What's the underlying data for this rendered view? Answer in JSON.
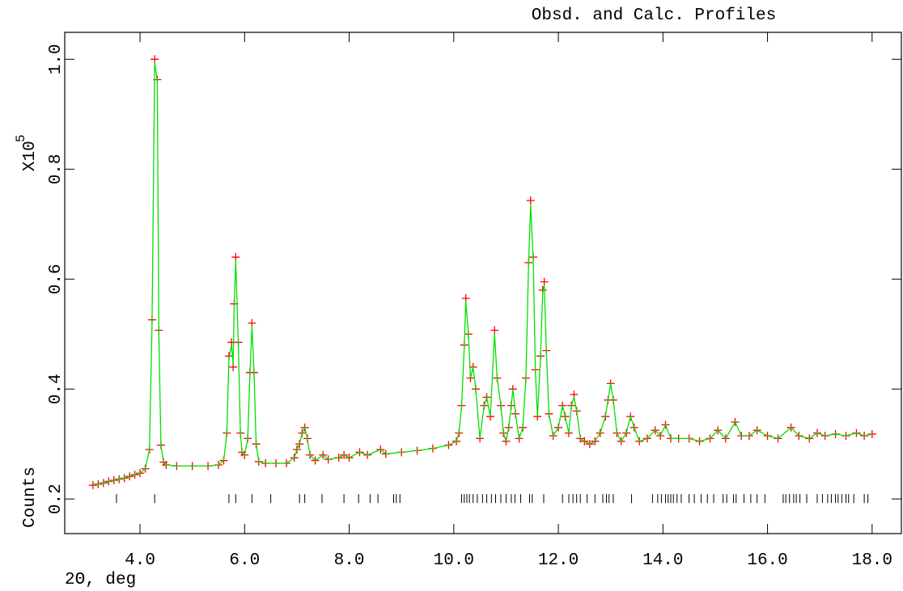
{
  "chart_data": {
    "type": "line",
    "title": "Obsd. and Calc. Profiles",
    "xlabel": "2Θ, deg",
    "ylabel": "Counts",
    "y_multiplier": "X10",
    "y_exponent": "5",
    "x": [
      3.1,
      3.2,
      3.3,
      3.4,
      3.5,
      3.6,
      3.7,
      3.8,
      3.9,
      4.0,
      4.1,
      4.18,
      4.23,
      4.28,
      4.33,
      4.36,
      4.4,
      4.45,
      4.5,
      4.7,
      5.0,
      5.3,
      5.5,
      5.6,
      5.66,
      5.7,
      5.75,
      5.78,
      5.8,
      5.83,
      5.88,
      5.92,
      5.95,
      6.0,
      6.06,
      6.1,
      6.14,
      6.18,
      6.22,
      6.27,
      6.4,
      6.6,
      6.8,
      6.95,
      7.0,
      7.05,
      7.1,
      7.15,
      7.2,
      7.25,
      7.35,
      7.5,
      7.6,
      7.8,
      7.9,
      8.0,
      8.2,
      8.35,
      8.6,
      8.7,
      9.0,
      9.3,
      9.6,
      9.9,
      10.05,
      10.1,
      10.15,
      10.2,
      10.23,
      10.28,
      10.32,
      10.37,
      10.42,
      10.5,
      10.58,
      10.63,
      10.7,
      10.78,
      10.83,
      10.9,
      10.95,
      11.0,
      11.05,
      11.1,
      11.13,
      11.18,
      11.25,
      11.32,
      11.38,
      11.43,
      11.47,
      11.52,
      11.56,
      11.6,
      11.66,
      11.7,
      11.73,
      11.77,
      11.82,
      11.9,
      12.0,
      12.08,
      12.13,
      12.2,
      12.25,
      12.3,
      12.35,
      12.42,
      12.5,
      12.6,
      12.7,
      12.8,
      12.9,
      12.95,
      13.0,
      13.05,
      13.12,
      13.2,
      13.3,
      13.38,
      13.45,
      13.55,
      13.7,
      13.85,
      13.95,
      14.05,
      14.15,
      14.3,
      14.5,
      14.7,
      14.9,
      15.05,
      15.2,
      15.38,
      15.5,
      15.65,
      15.8,
      16.0,
      16.2,
      16.45,
      16.6,
      16.8,
      16.95,
      17.1,
      17.3,
      17.5,
      17.7,
      17.85,
      18.0
    ],
    "series": [
      {
        "color": "#ff0000",
        "marker": "plus",
        "values": [
          0.225,
          0.227,
          0.229,
          0.232,
          0.234,
          0.236,
          0.238,
          0.241,
          0.244,
          0.247,
          0.255,
          0.29,
          0.526,
          1.0,
          0.963,
          0.507,
          0.298,
          0.267,
          0.262,
          0.26,
          0.26,
          0.26,
          0.262,
          0.27,
          0.32,
          0.46,
          0.485,
          0.44,
          0.555,
          0.64,
          0.485,
          0.32,
          0.285,
          0.28,
          0.31,
          0.43,
          0.52,
          0.43,
          0.3,
          0.268,
          0.265,
          0.265,
          0.265,
          0.275,
          0.29,
          0.3,
          0.32,
          0.33,
          0.31,
          0.28,
          0.27,
          0.28,
          0.272,
          0.275,
          0.28,
          0.275,
          0.285,
          0.28,
          0.29,
          0.282,
          0.285,
          0.288,
          0.292,
          0.298,
          0.305,
          0.32,
          0.37,
          0.48,
          0.565,
          0.5,
          0.42,
          0.44,
          0.4,
          0.31,
          0.37,
          0.385,
          0.35,
          0.507,
          0.42,
          0.37,
          0.32,
          0.305,
          0.33,
          0.37,
          0.4,
          0.355,
          0.31,
          0.33,
          0.42,
          0.63,
          0.743,
          0.64,
          0.435,
          0.35,
          0.46,
          0.58,
          0.595,
          0.47,
          0.355,
          0.315,
          0.33,
          0.37,
          0.35,
          0.32,
          0.37,
          0.39,
          0.36,
          0.31,
          0.305,
          0.3,
          0.305,
          0.32,
          0.35,
          0.38,
          0.41,
          0.38,
          0.32,
          0.305,
          0.32,
          0.35,
          0.33,
          0.305,
          0.31,
          0.325,
          0.315,
          0.335,
          0.31,
          0.31,
          0.31,
          0.305,
          0.31,
          0.325,
          0.31,
          0.34,
          0.315,
          0.315,
          0.325,
          0.315,
          0.31,
          0.33,
          0.315,
          0.31,
          0.32,
          0.315,
          0.318,
          0.315,
          0.32,
          0.315,
          0.318
        ]
      },
      {
        "color": "#00e000",
        "marker": "line",
        "values": [
          0.225,
          0.227,
          0.229,
          0.232,
          0.234,
          0.236,
          0.238,
          0.241,
          0.244,
          0.247,
          0.255,
          0.29,
          0.52,
          0.995,
          0.96,
          0.5,
          0.298,
          0.267,
          0.262,
          0.26,
          0.26,
          0.26,
          0.262,
          0.27,
          0.32,
          0.455,
          0.48,
          0.445,
          0.55,
          0.635,
          0.48,
          0.32,
          0.285,
          0.28,
          0.31,
          0.425,
          0.515,
          0.43,
          0.3,
          0.268,
          0.265,
          0.265,
          0.265,
          0.275,
          0.29,
          0.3,
          0.32,
          0.33,
          0.31,
          0.28,
          0.27,
          0.28,
          0.272,
          0.275,
          0.28,
          0.275,
          0.285,
          0.28,
          0.29,
          0.282,
          0.285,
          0.288,
          0.292,
          0.298,
          0.305,
          0.32,
          0.37,
          0.475,
          0.56,
          0.5,
          0.42,
          0.44,
          0.4,
          0.31,
          0.37,
          0.385,
          0.35,
          0.5,
          0.42,
          0.37,
          0.32,
          0.305,
          0.33,
          0.37,
          0.4,
          0.355,
          0.31,
          0.33,
          0.42,
          0.625,
          0.735,
          0.635,
          0.435,
          0.35,
          0.46,
          0.575,
          0.59,
          0.47,
          0.355,
          0.315,
          0.33,
          0.37,
          0.35,
          0.32,
          0.37,
          0.385,
          0.36,
          0.31,
          0.305,
          0.3,
          0.305,
          0.32,
          0.35,
          0.38,
          0.41,
          0.38,
          0.32,
          0.305,
          0.32,
          0.35,
          0.33,
          0.305,
          0.31,
          0.325,
          0.315,
          0.335,
          0.31,
          0.31,
          0.31,
          0.305,
          0.31,
          0.325,
          0.31,
          0.34,
          0.315,
          0.315,
          0.325,
          0.315,
          0.31,
          0.33,
          0.315,
          0.31,
          0.32,
          0.315,
          0.318,
          0.315,
          0.32,
          0.315,
          0.318
        ]
      }
    ],
    "reflections": {
      "color": "#000000",
      "y": 0.2,
      "x": [
        3.55,
        4.28,
        5.7,
        5.83,
        6.14,
        6.5,
        7.05,
        7.15,
        7.48,
        7.9,
        8.18,
        8.4,
        8.55,
        8.85,
        8.9,
        8.97,
        10.15,
        10.2,
        10.25,
        10.3,
        10.37,
        10.45,
        10.55,
        10.63,
        10.72,
        10.8,
        10.9,
        11.0,
        11.1,
        11.17,
        11.28,
        11.45,
        11.5,
        11.72,
        12.08,
        12.2,
        12.28,
        12.35,
        12.42,
        12.55,
        12.7,
        12.85,
        12.92,
        12.97,
        13.05,
        13.4,
        13.8,
        13.9,
        13.97,
        14.05,
        14.1,
        14.15,
        14.2,
        14.27,
        14.35,
        14.5,
        14.6,
        14.73,
        14.85,
        14.97,
        15.15,
        15.22,
        15.35,
        15.4,
        15.55,
        15.68,
        15.8,
        15.95,
        16.3,
        16.35,
        16.42,
        16.5,
        16.55,
        16.62,
        16.75,
        16.95,
        17.05,
        17.15,
        17.22,
        17.3,
        17.35,
        17.42,
        17.5,
        17.55,
        17.65,
        17.85,
        17.92
      ]
    },
    "xlim": [
      2.56,
      18.56
    ],
    "ylim": [
      0.137,
      1.049
    ],
    "xticks": [
      {
        "value": 4,
        "label": "4.0"
      },
      {
        "value": 6,
        "label": "6.0"
      },
      {
        "value": 8,
        "label": "8.0"
      },
      {
        "value": 10,
        "label": "10.0"
      },
      {
        "value": 12,
        "label": "12.0"
      },
      {
        "value": 14,
        "label": "14.0"
      },
      {
        "value": 16,
        "label": "16.0"
      },
      {
        "value": 18,
        "label": "18.0"
      }
    ],
    "yticks": [
      0.2,
      0.4,
      0.6,
      0.8,
      {
        "value": 1,
        "label": "1.0"
      }
    ]
  }
}
